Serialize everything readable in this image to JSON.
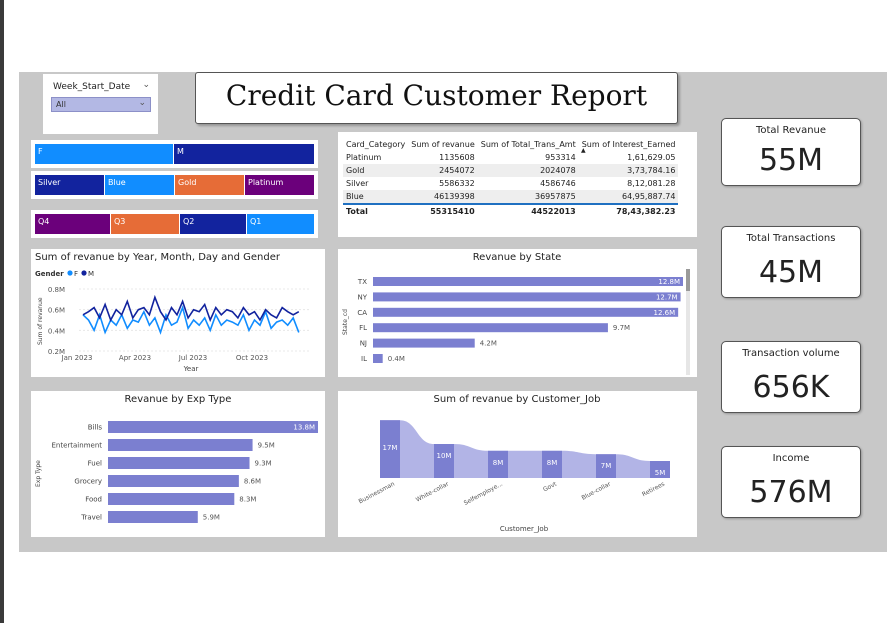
{
  "filter": {
    "label": "Week_Start_Date",
    "value": "All"
  },
  "title": "Credit Card Customer Report",
  "gender_slicer": [
    {
      "label": "F",
      "color": "#118dff"
    },
    {
      "label": "M",
      "color": "#12239e"
    }
  ],
  "category_slicer": [
    {
      "label": "Silver",
      "color": "#12239e"
    },
    {
      "label": "Blue",
      "color": "#118dff"
    },
    {
      "label": "Gold",
      "color": "#e66c37"
    },
    {
      "label": "Platinum",
      "color": "#6b007b"
    }
  ],
  "quarter_slicer": [
    {
      "label": "Q4",
      "color": "#6b007b"
    },
    {
      "label": "Q3",
      "color": "#e66c37"
    },
    {
      "label": "Q2",
      "color": "#12239e"
    },
    {
      "label": "Q1",
      "color": "#118dff"
    }
  ],
  "table": {
    "headers": [
      "Card_Category",
      "Sum of revanue",
      "Sum of Total_Trans_Amt",
      "Sum of Interest_Earned"
    ],
    "rows": [
      [
        "Platinum",
        "1135608",
        "953314",
        "1,61,629.05"
      ],
      [
        "Gold",
        "2454072",
        "2024078",
        "3,73,784.16"
      ],
      [
        "Silver",
        "5586332",
        "4586746",
        "8,12,081.28"
      ],
      [
        "Blue",
        "46139398",
        "36957875",
        "64,95,887.74"
      ]
    ],
    "total": [
      "Total",
      "55315410",
      "44522013",
      "78,43,382.23"
    ],
    "sort_caret": "▲"
  },
  "kpis": [
    {
      "label": "Total Revanue",
      "value": "55M"
    },
    {
      "label": "Total Transactions",
      "value": "45M"
    },
    {
      "label": "Transaction volume",
      "value": "656K"
    },
    {
      "label": "Income",
      "value": "576M"
    }
  ],
  "chart_data": [
    {
      "type": "line",
      "title": "Sum of revanue by Year, Month, Day and Gender",
      "legend_title": "Gender",
      "xlabel": "Year",
      "ylabel": "Sum of revanue",
      "x_ticks": [
        "Jan 2023",
        "Apr 2023",
        "Jul 2023",
        "Oct 2023"
      ],
      "y_ticks": [
        "0.8M",
        "0.6M",
        "0.4M",
        "0.2M"
      ],
      "ylim": [
        0.2,
        0.8
      ],
      "legend_placement": "top-left",
      "series": [
        {
          "name": "F",
          "color": "#118dff",
          "values": [
            0.55,
            0.5,
            0.4,
            0.55,
            0.38,
            0.5,
            0.45,
            0.55,
            0.42,
            0.5,
            0.48,
            0.58,
            0.45,
            0.52,
            0.38,
            0.55,
            0.45,
            0.48,
            0.62,
            0.42,
            0.5,
            0.45,
            0.52,
            0.4,
            0.55,
            0.45,
            0.5,
            0.48,
            0.45,
            0.55,
            0.4,
            0.5,
            0.45,
            0.58,
            0.42,
            0.48,
            0.5,
            0.45,
            0.52,
            0.38
          ]
        },
        {
          "name": "M",
          "color": "#12239e",
          "values": [
            0.55,
            0.58,
            0.62,
            0.52,
            0.65,
            0.5,
            0.6,
            0.55,
            0.68,
            0.52,
            0.6,
            0.62,
            0.55,
            0.72,
            0.58,
            0.5,
            0.62,
            0.55,
            0.68,
            0.52,
            0.6,
            0.58,
            0.65,
            0.5,
            0.62,
            0.55,
            0.6,
            0.58,
            0.52,
            0.62,
            0.55,
            0.58,
            0.5,
            0.6,
            0.55,
            0.52,
            0.62,
            0.58,
            0.55,
            0.58
          ]
        }
      ]
    },
    {
      "type": "bar",
      "title": "Revanue by State",
      "ylabel": "State_cd",
      "categories": [
        "TX",
        "NY",
        "CA",
        "FL",
        "NJ",
        "IL"
      ],
      "values": [
        12.8,
        12.7,
        12.6,
        9.7,
        4.2,
        0.4
      ],
      "labels": [
        "12.8M",
        "12.7M",
        "12.6M",
        "9.7M",
        "4.2M",
        "0.4M"
      ],
      "xlim": [
        0,
        12.8
      ],
      "color": "#7b7fd0"
    },
    {
      "type": "bar",
      "title": "Revanue by Exp Type",
      "ylabel": "Exp Type",
      "categories": [
        "Bills",
        "Entertainment",
        "Fuel",
        "Grocery",
        "Food",
        "Travel"
      ],
      "values": [
        13.8,
        9.5,
        9.3,
        8.6,
        8.3,
        5.9
      ],
      "labels": [
        "13.8M",
        "9.5M",
        "9.3M",
        "8.6M",
        "8.3M",
        "5.9M"
      ],
      "xlim": [
        0,
        13.8
      ],
      "color": "#7b7fd0"
    },
    {
      "type": "area",
      "title": "Sum of revanue by Customer_Job",
      "xlabel": "Customer_Job",
      "categories": [
        "Businessman",
        "White-collar",
        "Selfemploye...",
        "Govt",
        "Blue-collar",
        "Retirees"
      ],
      "values": [
        17,
        10,
        8,
        8,
        7,
        5
      ],
      "labels": [
        "17M",
        "10M",
        "8M",
        "8M",
        "7M",
        "5M"
      ],
      "color": "#7b7fd0"
    }
  ]
}
